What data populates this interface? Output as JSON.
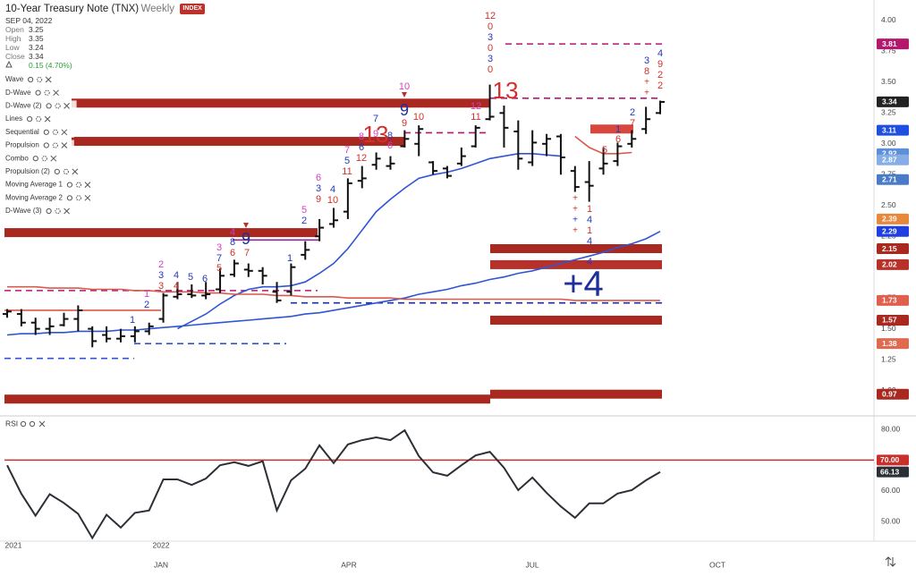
{
  "header": {
    "title": "10-Year Treasury Note (TNX)",
    "interval": "Weekly",
    "badge": "INDEX",
    "date": "SEP 04, 2022",
    "fields": [
      {
        "label": "Open",
        "value": 3.25
      },
      {
        "label": "High",
        "value": 3.35
      },
      {
        "label": "Low",
        "value": 3.24
      },
      {
        "label": "Close",
        "value": 3.34
      }
    ],
    "change": "0.15 (4.70%)"
  },
  "indicators": [
    "Wave",
    "D-Wave",
    "D-Wave (2)",
    "Lines",
    "Sequential",
    "Propulsion",
    "Combo",
    "Propulsion (2)",
    "Moving Average 1",
    "Moving Average 2",
    "D-Wave (3)"
  ],
  "x_labels": [
    "2021",
    "2022",
    "JAN",
    "APR",
    "JUL",
    "OCT"
  ],
  "chart_data": [
    {
      "type": "ohlc",
      "color": "#111111",
      "open": [
        1.62,
        1.62,
        1.55,
        1.5,
        1.53,
        1.58,
        1.5,
        1.45,
        1.42,
        1.44,
        1.48,
        1.58,
        1.76,
        1.78,
        1.77,
        1.82,
        1.94,
        1.98,
        1.97,
        1.8,
        1.8,
        2.1,
        2.25,
        2.35,
        2.45,
        2.7,
        2.83,
        2.82,
        2.98,
        3.0,
        2.85,
        2.8,
        2.84,
        2.98,
        3.2,
        3.25,
        3.1,
        2.85,
        3.0,
        3.06,
        2.78,
        2.69,
        2.8,
        2.86,
        3.0,
        3.12,
        3.25
      ],
      "high": [
        1.66,
        1.66,
        1.59,
        1.59,
        1.63,
        1.69,
        1.52,
        1.52,
        1.5,
        1.52,
        1.55,
        1.79,
        1.88,
        1.86,
        1.88,
        1.99,
        2.06,
        2.03,
        2.0,
        1.88,
        2.03,
        2.21,
        2.39,
        2.48,
        2.72,
        2.82,
        2.93,
        2.9,
        3.11,
        3.15,
        2.86,
        2.82,
        2.97,
        3.15,
        3.48,
        3.31,
        3.19,
        3.11,
        3.08,
        3.08,
        2.82,
        2.86,
        2.97,
        3.01,
        3.11,
        3.3,
        3.35
      ],
      "low": [
        1.59,
        1.52,
        1.45,
        1.45,
        1.52,
        1.48,
        1.35,
        1.39,
        1.39,
        1.39,
        1.45,
        1.55,
        1.74,
        1.75,
        1.74,
        1.79,
        1.92,
        1.92,
        1.86,
        1.71,
        1.77,
        2.06,
        2.21,
        2.32,
        2.39,
        2.64,
        2.79,
        2.79,
        2.97,
        2.9,
        2.75,
        2.72,
        2.82,
        2.97,
        3.19,
        2.97,
        2.79,
        2.82,
        2.9,
        2.75,
        2.61,
        2.53,
        2.75,
        2.82,
        2.97,
        3.08,
        3.24
      ],
      "close": [
        1.64,
        1.55,
        1.5,
        1.52,
        1.58,
        1.65,
        1.4,
        1.42,
        1.44,
        1.48,
        1.52,
        1.77,
        1.78,
        1.77,
        1.78,
        1.93,
        2.03,
        1.97,
        1.93,
        1.73,
        2.0,
        2.14,
        2.32,
        2.38,
        2.68,
        2.72,
        2.88,
        2.84,
        3.04,
        3.12,
        2.78,
        2.74,
        2.9,
        3.13,
        3.22,
        3.13,
        2.88,
        3.01,
        3.04,
        2.89,
        2.65,
        2.66,
        2.84,
        2.98,
        3.04,
        3.2,
        3.34
      ],
      "series": [
        {
          "color": "#2f55d4",
          "values": [
            1.45,
            1.46,
            1.46,
            1.47,
            1.47,
            1.48,
            1.48,
            1.48,
            1.49,
            1.49,
            1.5,
            1.51,
            1.52,
            1.53,
            1.54,
            1.55,
            1.56,
            1.57,
            1.58,
            1.59,
            1.6,
            1.62,
            1.63,
            1.65,
            1.67,
            1.69,
            1.71,
            1.73,
            1.75,
            1.78,
            1.8,
            1.82,
            1.85,
            1.87,
            1.9,
            1.92,
            1.95,
            1.97,
            2.0,
            2.03,
            2.06,
            2.09,
            2.12,
            2.16,
            2.19,
            2.23,
            2.29
          ]
        },
        {
          "color": "#2f55d4",
          "values": [
            null,
            null,
            null,
            null,
            null,
            null,
            null,
            null,
            null,
            null,
            null,
            null,
            1.5,
            1.56,
            1.62,
            1.7,
            1.77,
            1.82,
            1.84,
            1.84,
            1.85,
            1.88,
            1.95,
            2.03,
            2.15,
            2.3,
            2.45,
            2.55,
            2.64,
            2.72,
            2.75,
            2.77,
            2.8,
            2.84,
            2.88,
            2.9,
            2.92,
            2.92,
            2.91,
            2.9,
            null,
            null,
            null,
            null,
            null,
            null,
            null
          ]
        },
        {
          "color": "#d9594c",
          "values": [
            1.84,
            1.84,
            1.84,
            1.83,
            1.83,
            1.83,
            1.82,
            1.82,
            1.82,
            1.81,
            1.81,
            1.8,
            1.8,
            1.8,
            1.79,
            1.79,
            1.78,
            1.78,
            1.78,
            1.77,
            1.77,
            1.76,
            1.76,
            1.76,
            1.75,
            1.75,
            1.75,
            1.75,
            1.74,
            1.74,
            1.74,
            1.74,
            1.74,
            1.74,
            1.74,
            1.74,
            1.74,
            1.74,
            1.74,
            1.74,
            1.73,
            1.73,
            1.73,
            1.73,
            1.73,
            1.73,
            1.73
          ]
        },
        {
          "color": "#d9594c",
          "values": [
            null,
            null,
            null,
            null,
            null,
            null,
            null,
            null,
            null,
            null,
            null,
            null,
            null,
            null,
            null,
            null,
            null,
            null,
            null,
            null,
            null,
            null,
            null,
            null,
            null,
            null,
            null,
            null,
            null,
            null,
            null,
            null,
            null,
            null,
            null,
            null,
            null,
            null,
            null,
            null,
            3.06,
            2.97,
            2.92,
            2.92,
            2.93,
            null,
            null
          ]
        }
      ],
      "levels": [
        {
          "value": 3.33,
          "style": "band",
          "color": "#a9281f"
        },
        {
          "value": 3.02,
          "style": "band",
          "color": "#a9281f"
        },
        {
          "value": 2.28,
          "style": "band",
          "color": "#a9281f"
        },
        {
          "value": 2.15,
          "style": "band",
          "color": "#a9281f"
        },
        {
          "value": 2.02,
          "style": "band",
          "color": "#b8302a"
        },
        {
          "value": 1.57,
          "style": "band",
          "color": "#a9281f"
        },
        {
          "value": 0.97,
          "style": "band",
          "color": "#a9281f"
        },
        {
          "value": 0.93,
          "style": "band",
          "color": "#a9281f"
        },
        {
          "value": 3.12,
          "style": "band",
          "color": "#d9463b"
        },
        {
          "value": 3.81,
          "style": "dashed",
          "color": "#b5176f"
        },
        {
          "value": 3.37,
          "style": "dashed",
          "color": "#b5176f"
        },
        {
          "value": 3.09,
          "style": "dashed",
          "color": "#b5176f"
        },
        {
          "value": 1.81,
          "style": "dashed",
          "color": "#b5176f"
        },
        {
          "value": 2.22,
          "style": "line",
          "color": "#8a2a9a"
        },
        {
          "value": 1.71,
          "style": "dashed",
          "color": "#1c2fa0"
        },
        {
          "value": 1.38,
          "style": "dashed",
          "color": "#2f55d4"
        },
        {
          "value": 1.26,
          "style": "dashed",
          "color": "#2f55d4"
        },
        {
          "value": 1.65,
          "style": "line",
          "color": "#d9594c"
        }
      ],
      "price_labels": [
        {
          "value": 3.81,
          "color": "#b5176f"
        },
        {
          "value": 3.34,
          "color": "#222222"
        },
        {
          "value": 3.11,
          "color": "#1f4fe0"
        },
        {
          "value": 2.92,
          "color": "#5b8fd9"
        },
        {
          "value": 2.87,
          "color": "#86ade6"
        },
        {
          "value": 2.71,
          "color": "#4a7bc8"
        },
        {
          "value": 2.39,
          "color": "#e8883a"
        },
        {
          "value": 2.29,
          "color": "#1f3fe0"
        },
        {
          "value": 2.15,
          "color": "#a9281f"
        },
        {
          "value": 2.02,
          "color": "#b8302a"
        },
        {
          "value": 1.73,
          "color": "#e06050"
        },
        {
          "value": 1.57,
          "color": "#a9281f"
        },
        {
          "value": 1.38,
          "color": "#e06a50"
        },
        {
          "value": 0.97,
          "color": "#a9281f"
        }
      ],
      "ylim": [
        0.83,
        4.13
      ],
      "yticks": [
        {
          "value": 4,
          "label": "4.00"
        },
        3.75,
        {
          "value": 3.5,
          "label": "3.50"
        },
        3.25,
        {
          "value": 3,
          "label": "3.00"
        },
        2.75,
        {
          "value": 2.5,
          "label": "2.50"
        },
        2.25,
        1.75,
        {
          "value": 1.5,
          "label": "1.50"
        },
        1.25,
        {
          "value": 1,
          "label": "1.00"
        }
      ],
      "annotations": [
        {
          "text": "12",
          "color": "#d0312d"
        },
        {
          "text": "0",
          "color": "#d0312d"
        },
        {
          "text": "3",
          "color": "#2438b8"
        },
        {
          "text": "0",
          "color": "#d0312d"
        },
        {
          "text": "3",
          "color": "#2438b8"
        },
        {
          "text": "0",
          "color": "#d0312d"
        },
        {
          "text": "13",
          "color": "#d0312d"
        },
        {
          "text": "4",
          "color": "#2438b8"
        },
        {
          "text": "9",
          "color": "#d0312d"
        },
        {
          "text": "2",
          "color": "#d0312d"
        },
        {
          "text": "2",
          "color": "#d0312d"
        },
        {
          "text": "3",
          "color": "#2438b8"
        },
        {
          "text": "8",
          "color": "#d0312d"
        },
        {
          "text": "+",
          "color": "#d0312d"
        },
        {
          "text": "+",
          "color": "#d0312d"
        },
        {
          "text": "2",
          "color": "#2438b8"
        },
        {
          "text": "7",
          "color": "#d0312d"
        },
        {
          "text": "1",
          "color": "#2438b8"
        },
        {
          "text": "6",
          "color": "#d0312d"
        },
        {
          "text": "5",
          "color": "#d0312d"
        },
        {
          "text": "+",
          "color": "#d0312d"
        },
        {
          "text": "+",
          "color": "#d0312d"
        },
        {
          "text": "+",
          "color": "#2438b8"
        },
        {
          "text": "+",
          "color": "#d0312d"
        },
        {
          "text": "1",
          "color": "#d0312d"
        },
        {
          "text": "4",
          "color": "#2438b8"
        },
        {
          "text": "1",
          "color": "#d0312d"
        },
        {
          "text": "4",
          "color": "#2438b8"
        },
        {
          "text": "4",
          "color": "#2438b8"
        },
        {
          "text": "+4",
          "color": "#1f2f99"
        },
        {
          "text": "9",
          "color": "#1f2f99"
        },
        {
          "text": "10",
          "color": "#d63fc0"
        },
        {
          "text": "9",
          "color": "#d0312d"
        },
        {
          "text": "10",
          "color": "#d0312d"
        },
        {
          "text": "12",
          "color": "#d63fc0"
        },
        {
          "text": "11",
          "color": "#d0312d"
        },
        {
          "text": "13",
          "color": "#d0312d"
        },
        {
          "text": "9",
          "color": "#d63fc0"
        },
        {
          "text": "7",
          "color": "#2438b8"
        },
        {
          "text": "8",
          "color": "#d63fc0"
        },
        {
          "text": "6",
          "color": "#2438b8"
        },
        {
          "text": "12",
          "color": "#d0312d"
        },
        {
          "text": "8",
          "color": "#2438b8"
        },
        {
          "text": "6",
          "color": "#d63fc0"
        },
        {
          "text": "7",
          "color": "#d63fc0"
        },
        {
          "text": "5",
          "color": "#2438b8"
        },
        {
          "text": "11",
          "color": "#d0312d"
        },
        {
          "text": "6",
          "color": "#d63fc0"
        },
        {
          "text": "3",
          "color": "#2438b8"
        },
        {
          "text": "9",
          "color": "#d0312d"
        },
        {
          "text": "4",
          "color": "#2438b8"
        },
        {
          "text": "10",
          "color": "#d0312d"
        },
        {
          "text": "5",
          "color": "#d63fc0"
        },
        {
          "text": "2",
          "color": "#2438b8"
        },
        {
          "text": "9",
          "color": "#1f2f99"
        },
        {
          "text": "4",
          "color": "#d63fc0"
        },
        {
          "text": "8",
          "color": "#2438b8"
        },
        {
          "text": "6",
          "color": "#d0312d"
        },
        {
          "text": "7",
          "color": "#d0312d"
        },
        {
          "text": "3",
          "color": "#d63fc0"
        },
        {
          "text": "7",
          "color": "#2438b8"
        },
        {
          "text": "5",
          "color": "#d0312d"
        },
        {
          "text": "6",
          "color": "#2438b8"
        },
        {
          "text": "5",
          "color": "#2438b8"
        },
        {
          "text": "4",
          "color": "#2438b8"
        },
        {
          "text": "4",
          "color": "#d0312d"
        },
        {
          "text": "2",
          "color": "#d63fc0"
        },
        {
          "text": "3",
          "color": "#2438b8"
        },
        {
          "text": "3",
          "color": "#d0312d"
        },
        {
          "text": "1",
          "color": "#d63fc0"
        },
        {
          "text": "2",
          "color": "#2438b8"
        },
        {
          "text": "1",
          "color": "#2438b8"
        },
        {
          "text": "1",
          "color": "#2438b8"
        }
      ]
    },
    {
      "type": "line",
      "title": "RSI",
      "series": [
        {
          "color": "#2b2f36",
          "values": [
            68.3,
            59,
            51.9,
            58.9,
            56,
            52.5,
            44.6,
            52.2,
            48,
            52.8,
            53.6,
            63.7,
            63.7,
            61.9,
            64,
            68.3,
            69.3,
            68.1,
            69.6,
            53.6,
            63.4,
            67.2,
            74.8,
            69,
            75.1,
            76.5,
            77.4,
            76.5,
            79.7,
            71.3,
            66,
            64.9,
            68.3,
            71.5,
            72.7,
            67.5,
            60.2,
            64.3,
            59.3,
            54.9,
            51.2,
            55.9,
            55.9,
            59.1,
            60.2,
            63.4,
            66.13
          ]
        }
      ],
      "reference": {
        "value": 70,
        "color": "#c9302c"
      },
      "value_labels": [
        {
          "value": 70,
          "label": "70.00",
          "color": "#c9302c"
        },
        {
          "value": 66.13,
          "color": "#2b2f36"
        }
      ],
      "ylim": [
        43.6,
        83.8
      ],
      "yticks": [
        {
          "value": 80,
          "label": "80.00"
        },
        {
          "value": 70,
          "label": "70.00"
        },
        {
          "value": 60,
          "label": "60.00"
        },
        {
          "value": 50,
          "label": "50.00"
        }
      ]
    }
  ]
}
